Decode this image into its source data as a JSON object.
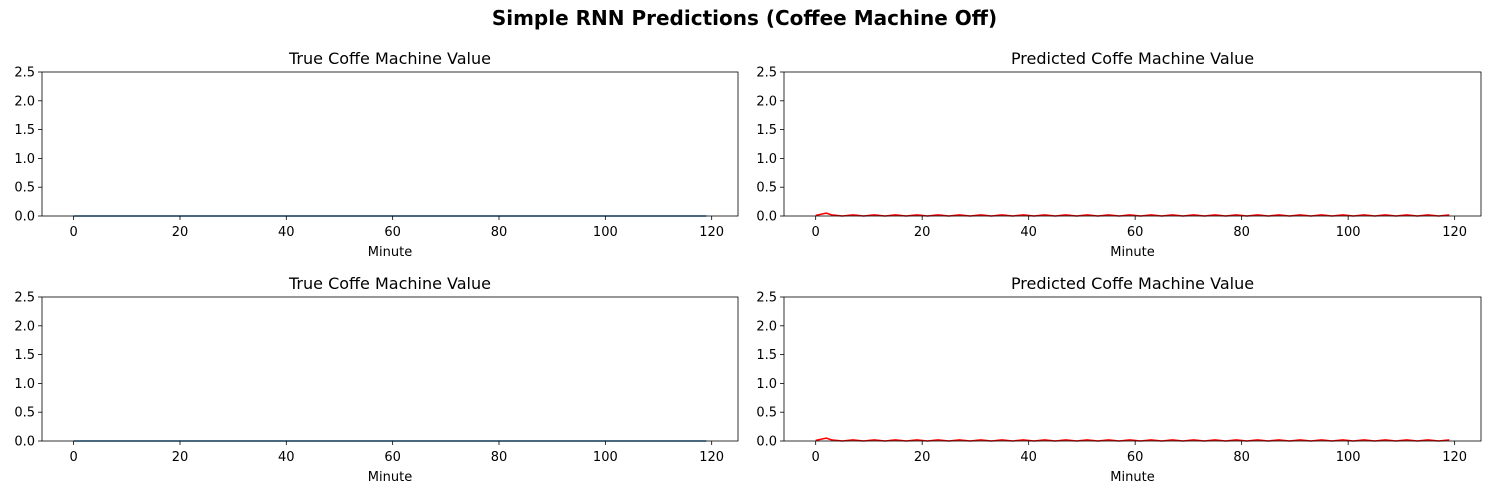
{
  "figure": {
    "title": "Simple RNN Predictions (Coffee Machine Off)"
  },
  "chart_data": [
    {
      "type": "line",
      "title": "True Coffe Machine Value",
      "xlabel": "Minute",
      "ylabel": "",
      "xlim": [
        -5.95,
        124.95
      ],
      "ylim": [
        0,
        2.5
      ],
      "xticks": [
        0,
        20,
        40,
        60,
        80,
        100,
        120
      ],
      "yticks": [
        0.0,
        0.5,
        1.0,
        1.5,
        2.0,
        2.5
      ],
      "color": "#1f77b4",
      "series": [
        {
          "x_start": 0,
          "x_end": 119,
          "constant_value": 0.0
        }
      ]
    },
    {
      "type": "line",
      "title": "Predicted Coffe Machine Value",
      "xlabel": "Minute",
      "ylabel": "",
      "xlim": [
        -5.95,
        124.95
      ],
      "ylim": [
        0,
        2.5
      ],
      "xticks": [
        0,
        20,
        40,
        60,
        80,
        100,
        120
      ],
      "yticks": [
        0.0,
        0.5,
        1.0,
        1.5,
        2.0,
        2.5
      ],
      "color": "#ff0000",
      "series": [
        {
          "x": [
            0,
            2,
            3,
            5,
            7,
            9,
            11,
            13,
            15,
            17,
            19,
            21,
            23,
            25,
            27,
            29,
            31,
            33,
            35,
            37,
            39,
            41,
            43,
            45,
            47,
            49,
            51,
            53,
            55,
            57,
            59,
            61,
            63,
            65,
            67,
            69,
            71,
            73,
            75,
            77,
            79,
            81,
            83,
            85,
            87,
            89,
            91,
            93,
            95,
            97,
            99,
            101,
            103,
            105,
            107,
            109,
            111,
            113,
            115,
            117,
            119
          ],
          "y": [
            0.01,
            0.05,
            0.02,
            0.0,
            0.02,
            0.0,
            0.02,
            0.0,
            0.02,
            0.0,
            0.02,
            0.0,
            0.02,
            0.0,
            0.02,
            0.0,
            0.02,
            0.0,
            0.02,
            0.0,
            0.02,
            0.0,
            0.02,
            0.0,
            0.02,
            0.0,
            0.02,
            0.0,
            0.02,
            0.0,
            0.02,
            0.0,
            0.02,
            0.0,
            0.02,
            0.0,
            0.02,
            0.0,
            0.02,
            0.0,
            0.02,
            0.0,
            0.02,
            0.0,
            0.02,
            0.0,
            0.02,
            0.0,
            0.02,
            0.0,
            0.02,
            0.0,
            0.02,
            0.0,
            0.02,
            0.0,
            0.02,
            0.0,
            0.02,
            0.0,
            0.02
          ]
        }
      ]
    },
    {
      "type": "line",
      "title": "True Coffe Machine Value",
      "xlabel": "Minute",
      "ylabel": "",
      "xlim": [
        -5.95,
        124.95
      ],
      "ylim": [
        0,
        2.5
      ],
      "xticks": [
        0,
        20,
        40,
        60,
        80,
        100,
        120
      ],
      "yticks": [
        0.0,
        0.5,
        1.0,
        1.5,
        2.0,
        2.5
      ],
      "color": "#1f77b4",
      "series": [
        {
          "x_start": 0,
          "x_end": 119,
          "constant_value": 0.0
        }
      ]
    },
    {
      "type": "line",
      "title": "Predicted Coffe Machine Value",
      "xlabel": "Minute",
      "ylabel": "",
      "xlim": [
        -5.95,
        124.95
      ],
      "ylim": [
        0,
        2.5
      ],
      "xticks": [
        0,
        20,
        40,
        60,
        80,
        100,
        120
      ],
      "yticks": [
        0.0,
        0.5,
        1.0,
        1.5,
        2.0,
        2.5
      ],
      "color": "#ff0000",
      "series": [
        {
          "x": [
            0,
            2,
            3,
            5,
            7,
            9,
            11,
            13,
            15,
            17,
            19,
            21,
            23,
            25,
            27,
            29,
            31,
            33,
            35,
            37,
            39,
            41,
            43,
            45,
            47,
            49,
            51,
            53,
            55,
            57,
            59,
            61,
            63,
            65,
            67,
            69,
            71,
            73,
            75,
            77,
            79,
            81,
            83,
            85,
            87,
            89,
            91,
            93,
            95,
            97,
            99,
            101,
            103,
            105,
            107,
            109,
            111,
            113,
            115,
            117,
            119
          ],
          "y": [
            0.01,
            0.05,
            0.02,
            0.0,
            0.02,
            0.0,
            0.02,
            0.0,
            0.02,
            0.0,
            0.02,
            0.0,
            0.02,
            0.0,
            0.02,
            0.0,
            0.02,
            0.0,
            0.02,
            0.0,
            0.02,
            0.0,
            0.02,
            0.0,
            0.02,
            0.0,
            0.02,
            0.0,
            0.02,
            0.0,
            0.02,
            0.0,
            0.02,
            0.0,
            0.02,
            0.0,
            0.02,
            0.0,
            0.02,
            0.0,
            0.02,
            0.0,
            0.02,
            0.0,
            0.02,
            0.0,
            0.02,
            0.0,
            0.02,
            0.0,
            0.02,
            0.0,
            0.02,
            0.0,
            0.02,
            0.0,
            0.02,
            0.0,
            0.02,
            0.0,
            0.02
          ]
        }
      ]
    }
  ]
}
